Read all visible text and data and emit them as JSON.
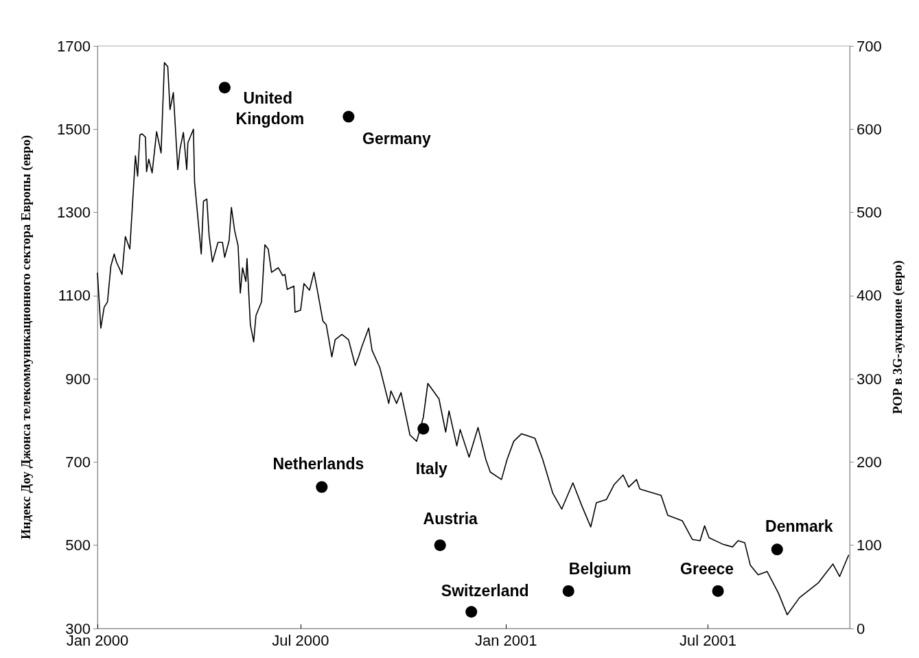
{
  "chart_data": {
    "type": "line",
    "ylabel": "Индекс Доу Джонса телекоммуникационного сектора Европы (евро)",
    "y2label": "РОР в 3G-аукционе (евро)",
    "xlim": [
      "2000-01-01",
      "2001-11-05"
    ],
    "xticks": [
      {
        "value": "2000-01-01",
        "label": "Jan 2000"
      },
      {
        "value": "2000-07-01",
        "label": "Jul 2000"
      },
      {
        "value": "2001-01-01",
        "label": "Jan 2001"
      },
      {
        "value": "2001-07-01",
        "label": "Jul 2001"
      }
    ],
    "ylim": [
      300,
      1700
    ],
    "yticks": [
      300,
      500,
      700,
      900,
      1100,
      1300,
      1500,
      1700
    ],
    "y2lim": [
      0,
      700
    ],
    "y2ticks": [
      0,
      100,
      200,
      300,
      400,
      500,
      600,
      700
    ],
    "grid": false,
    "series": [
      {
        "type": "line",
        "axis": "y",
        "color": "#000000",
        "marker": "none",
        "line_style": "solid",
        "x": [
          "2000-01-01",
          "2000-01-04",
          "2000-01-07",
          "2000-01-10",
          "2000-01-13",
          "2000-01-16",
          "2000-01-18",
          "2000-01-23",
          "2000-01-26",
          "2000-01-30",
          "2000-02-04",
          "2000-02-06",
          "2000-02-08",
          "2000-02-10",
          "2000-02-13",
          "2000-02-14",
          "2000-02-16",
          "2000-02-19",
          "2000-02-23",
          "2000-02-27",
          "2000-03-01",
          "2000-03-04",
          "2000-03-06",
          "2000-03-09",
          "2000-03-13",
          "2000-03-15",
          "2000-03-18",
          "2000-03-21",
          "2000-03-22",
          "2000-03-27",
          "2000-03-28",
          "2000-04-03",
          "2000-04-05",
          "2000-04-08",
          "2000-04-10",
          "2000-04-13",
          "2000-04-16",
          "2000-04-18",
          "2000-04-22",
          "2000-04-24",
          "2000-04-28",
          "2000-04-30",
          "2000-05-03",
          "2000-05-06",
          "2000-05-08",
          "2000-05-10",
          "2000-05-13",
          "2000-05-14",
          "2000-05-17",
          "2000-05-20",
          "2000-05-22",
          "2000-05-27",
          "2000-05-30",
          "2000-06-02",
          "2000-06-05",
          "2000-06-11",
          "2000-06-15",
          "2000-06-17",
          "2000-06-19",
          "2000-06-25",
          "2000-06-26",
          "2000-07-01",
          "2000-07-04",
          "2000-07-09",
          "2000-07-13",
          "2000-07-16",
          "2000-07-21",
          "2000-07-24",
          "2000-07-29",
          "2000-08-01",
          "2000-08-07",
          "2000-08-13",
          "2000-08-19",
          "2000-08-22",
          "2000-08-25",
          "2000-08-31",
          "2000-09-03",
          "2000-09-10",
          "2000-09-18",
          "2000-09-20",
          "2000-09-25",
          "2000-09-29",
          "2000-10-07",
          "2000-10-13",
          "2000-10-19",
          "2000-10-23",
          "2000-11-02",
          "2000-11-08",
          "2000-11-11",
          "2000-11-18",
          "2000-11-21",
          "2000-11-29",
          "2000-12-07",
          "2000-12-14",
          "2000-12-18",
          "2000-12-28",
          "2001-01-02",
          "2001-01-08",
          "2001-01-15",
          "2001-01-27",
          "2001-02-03",
          "2001-02-12",
          "2001-02-20",
          "2001-03-02",
          "2001-03-10",
          "2001-03-18",
          "2001-03-23",
          "2001-04-01",
          "2001-04-08",
          "2001-04-16",
          "2001-04-21",
          "2001-04-28",
          "2001-05-01",
          "2001-05-20",
          "2001-05-26",
          "2001-06-08",
          "2001-06-17",
          "2001-06-24",
          "2001-06-28",
          "2001-07-02",
          "2001-07-14",
          "2001-07-23",
          "2001-07-28",
          "2001-08-03",
          "2001-08-08",
          "2001-08-15",
          "2001-08-23",
          "2001-09-02",
          "2001-09-10",
          "2001-09-21",
          "2001-10-08",
          "2001-10-21",
          "2001-10-27",
          "2001-11-04"
        ],
        "values": [
          1154,
          1022,
          1072,
          1085,
          1171,
          1200,
          1181,
          1151,
          1242,
          1212,
          1436,
          1387,
          1486,
          1489,
          1481,
          1398,
          1428,
          1395,
          1494,
          1443,
          1660,
          1650,
          1547,
          1588,
          1403,
          1453,
          1492,
          1403,
          1467,
          1500,
          1373,
          1200,
          1327,
          1332,
          1245,
          1181,
          1209,
          1228,
          1228,
          1192,
          1233,
          1312,
          1255,
          1220,
          1106,
          1167,
          1134,
          1189,
          1030,
          989,
          1052,
          1085,
          1222,
          1212,
          1156,
          1167,
          1148,
          1151,
          1115,
          1123,
          1060,
          1065,
          1129,
          1113,
          1156,
          1113,
          1039,
          1030,
          953,
          994,
          1007,
          994,
          932,
          953,
          978,
          1022,
          969,
          927,
          841,
          871,
          841,
          867,
          765,
          750,
          808,
          889,
          852,
          772,
          823,
          739,
          778,
          712,
          783,
          706,
          676,
          658,
          706,
          750,
          768,
          757,
          706,
          625,
          587,
          650,
          595,
          544,
          602,
          610,
          646,
          669,
          640,
          658,
          635,
          620,
          572,
          559,
          514,
          511,
          547,
          518,
          503,
          496,
          511,
          506,
          452,
          429,
          437,
          386,
          333,
          374,
          410,
          455,
          425,
          476
        ]
      },
      {
        "type": "scatter",
        "axis": "y2",
        "color": "#000000",
        "marker": "circle",
        "x": [
          "2000-04-24",
          "2000-08-13",
          "2000-07-20",
          "2000-10-19",
          "2000-11-03",
          "2000-12-01",
          "2001-02-26",
          "2001-07-10",
          "2001-09-01"
        ],
        "values": [
          650,
          615,
          170,
          240,
          100,
          20,
          45,
          45,
          95
        ],
        "value_labels": [
          "United Kingdom",
          "Germany",
          "Netherlands",
          "Italy",
          "Austria",
          "Switzerland",
          "Belgium",
          "Greece",
          "Denmark"
        ]
      }
    ]
  }
}
